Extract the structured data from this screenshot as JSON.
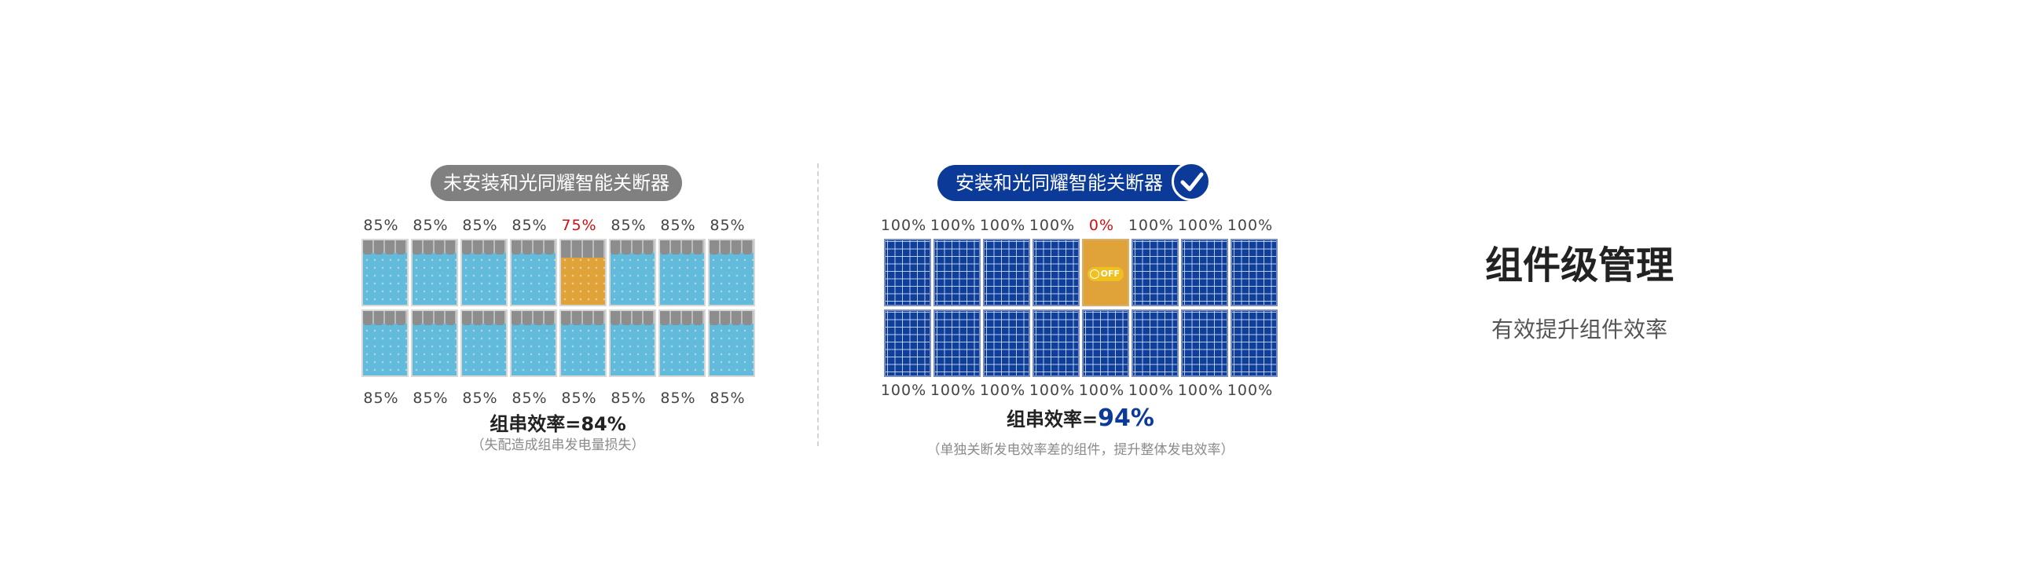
{
  "left": {
    "badge": "未安装和光同耀智能关断器",
    "top_percentages": [
      "85%",
      "85%",
      "85%",
      "85%",
      "75%",
      "85%",
      "85%",
      "85%"
    ],
    "bottom_percentages": [
      "85%",
      "85%",
      "85%",
      "85%",
      "85%",
      "85%",
      "85%",
      "85%"
    ],
    "highlight_index": 4,
    "efficiency_label": "组串效率=",
    "efficiency_value": "84%",
    "note": "（失配造成组串发电量损失）"
  },
  "right": {
    "badge": "安装和光同耀智能关断器",
    "top_percentages": [
      "100%",
      "100%",
      "100%",
      "100%",
      "0%",
      "100%",
      "100%",
      "100%"
    ],
    "bottom_percentages": [
      "100%",
      "100%",
      "100%",
      "100%",
      "100%",
      "100%",
      "100%",
      "100%"
    ],
    "highlight_index": 4,
    "off_label": "OFF",
    "efficiency_label": "组串效率=",
    "efficiency_value": "94%",
    "note": "（单独关断发电效率差的组件，提升整体发电效率）"
  },
  "main": {
    "title": "组件级管理",
    "subtitle": "有效提升组件效率"
  },
  "colors": {
    "gray_badge": "#808080",
    "blue_badge": "#0b3a99",
    "light_panel": "#62bbdb",
    "dark_panel": "#0f3f99",
    "shaded_panel": "#e0a33a",
    "highlight_text": "#d01010"
  },
  "icons": {
    "badge_check": "check-circle-icon",
    "off_switch": "power-off-icon"
  }
}
